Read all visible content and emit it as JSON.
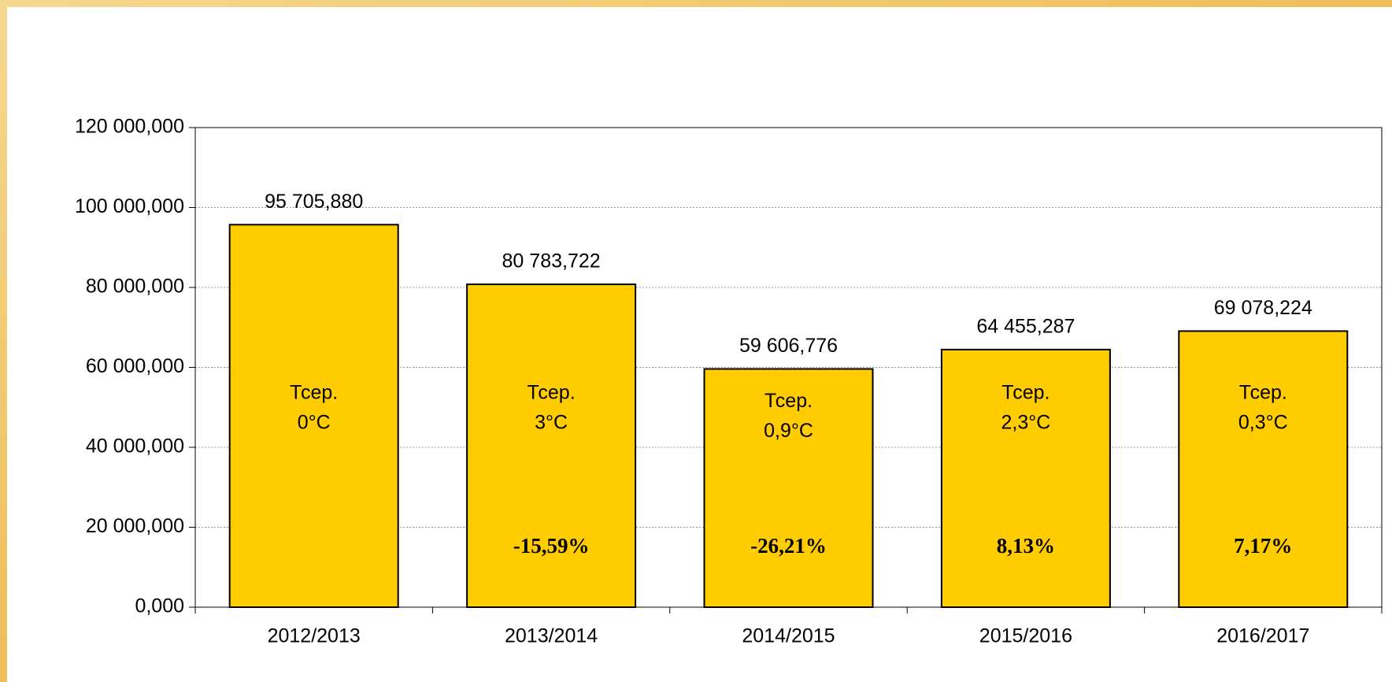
{
  "chart_data": {
    "type": "bar",
    "categories": [
      "2012/2013",
      "2013/2014",
      "2014/2015",
      "2015/2016",
      "2016/2017"
    ],
    "values": [
      95705880,
      80783722,
      59606776,
      64455287,
      69078224
    ],
    "value_labels": [
      "95 705,880",
      "80 783,722",
      "59 606,776",
      "64 455,287",
      "69 078,224"
    ],
    "inner_labels": [
      [
        "Тсер.",
        "0°C"
      ],
      [
        "Тсер.",
        "3°C"
      ],
      [
        "Тсер.",
        "0,9°C"
      ],
      [
        "Тсер.",
        "2,3°C"
      ],
      [
        "Тсер.",
        "0,3°C"
      ]
    ],
    "change_labels": [
      null,
      "-15,59%",
      "-26,21%",
      "8,13%",
      "7,17%"
    ],
    "color": "#ffcc00",
    "ylim": [
      0,
      120000000
    ],
    "yticks": [
      {
        "value": 0,
        "label": "0,000"
      },
      {
        "value": 20000000,
        "label": "20 000,000"
      },
      {
        "value": 40000000,
        "label": "40 000,000"
      },
      {
        "value": 60000000,
        "label": "60 000,000"
      },
      {
        "value": 80000000,
        "label": "80 000,000"
      },
      {
        "value": 100000000,
        "label": "100 000,000"
      },
      {
        "value": 120000000,
        "label": "120 000,000"
      }
    ],
    "grid": true
  }
}
